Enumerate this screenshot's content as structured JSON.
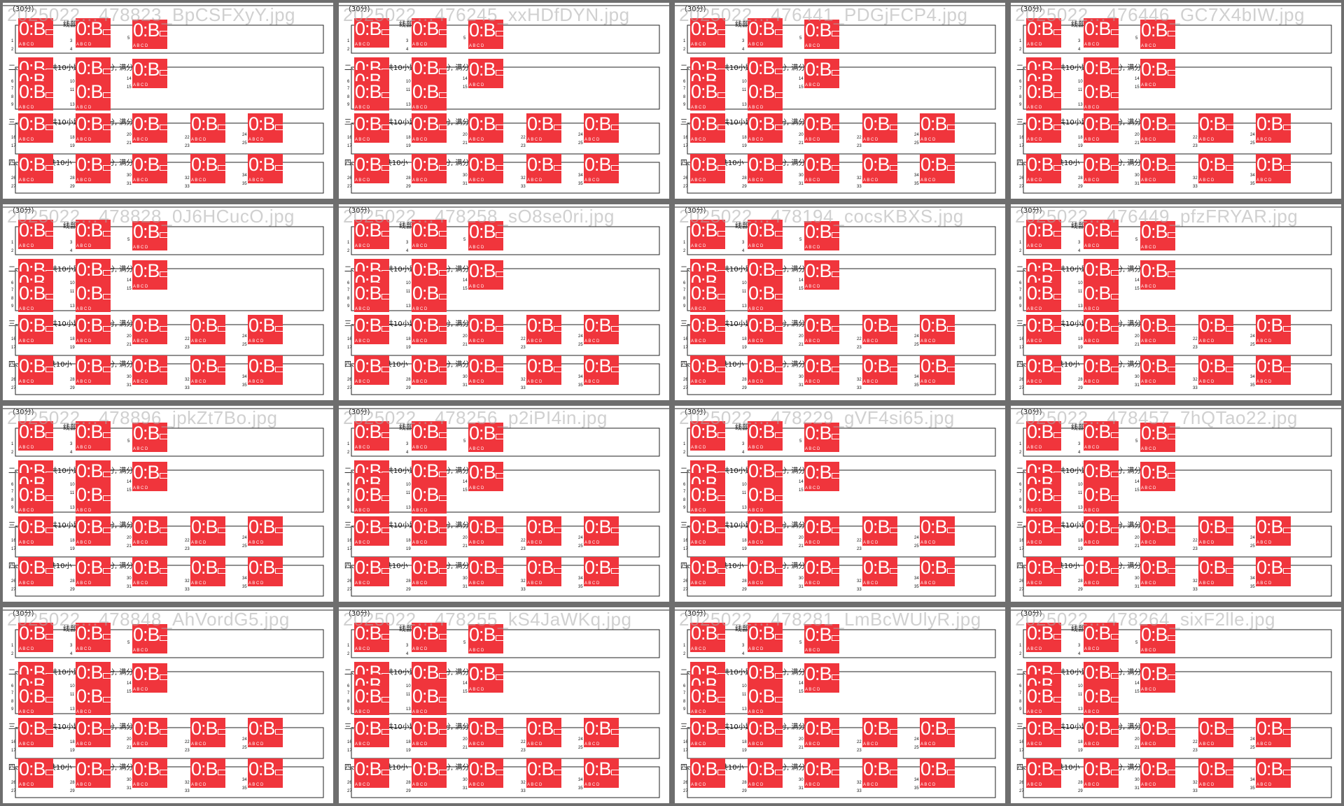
{
  "tiles": [
    {
      "filename": "2025022…478823_BpCSFXyY.jpg"
    },
    {
      "filename": "2025022…476245_xxHDfDYN.jpg"
    },
    {
      "filename": "2025022…476441_PDGjFCP4.jpg"
    },
    {
      "filename": "2025022…476446_GC7X4bIW.jpg"
    },
    {
      "filename": "2025022…478828_0J6HCucO.jpg"
    },
    {
      "filename": "2025022…478258_sO8se0ri.jpg"
    },
    {
      "filename": "2025022…478194_cocsKBXS.jpg"
    },
    {
      "filename": "2025022…476449_pfzFRYAR.jpg"
    },
    {
      "filename": "2025022…478896_jpkZt7Bo.jpg"
    },
    {
      "filename": "2025022…478256_p2iPI4in.jpg"
    },
    {
      "filename": "2025022…478229_gVF4si65.jpg"
    },
    {
      "filename": "2025022…478457_7hQTao22.jpg"
    },
    {
      "filename": "2025022…478848_AhVordG5.jpg"
    },
    {
      "filename": "2025022…478255_kS4JaWKq.jpg"
    },
    {
      "filename": "2025022…478281_LmBcWUlyR.jpg"
    },
    {
      "filename": "2025022…478264_sixF2lle.jpg"
    }
  ],
  "detection_label": "0:B",
  "option_row": "A B C D",
  "sheet": {
    "score_note": "(30分)",
    "sec1": "线部分",
    "sec1_tail": "单词(共",
    "sec2": "二、",
    "sec2_mid": "共10小题",
    "sec2_tail": "分, 满分",
    "sec3": "三、",
    "sec3_mid": "共10小题",
    "sec3_tail": "分, 满分",
    "sec4": "四、",
    "sec4_mid": "(共10小",
    "sec4_tail": "分, 满分",
    "numbers": [
      "1",
      "2",
      "3",
      "4",
      "5",
      "6",
      "7",
      "8",
      "9",
      "10",
      "11",
      "13",
      "14",
      "15",
      "16",
      "17",
      "18",
      "19",
      "20",
      "21",
      "22",
      "23",
      "24",
      "25",
      "26",
      "27",
      "28",
      "29",
      "30",
      "31",
      "32",
      "33",
      "34",
      "35"
    ]
  },
  "colors": {
    "box": "#f0353c",
    "frame": "#6e6e6e",
    "background": "#8a8a8a"
  }
}
